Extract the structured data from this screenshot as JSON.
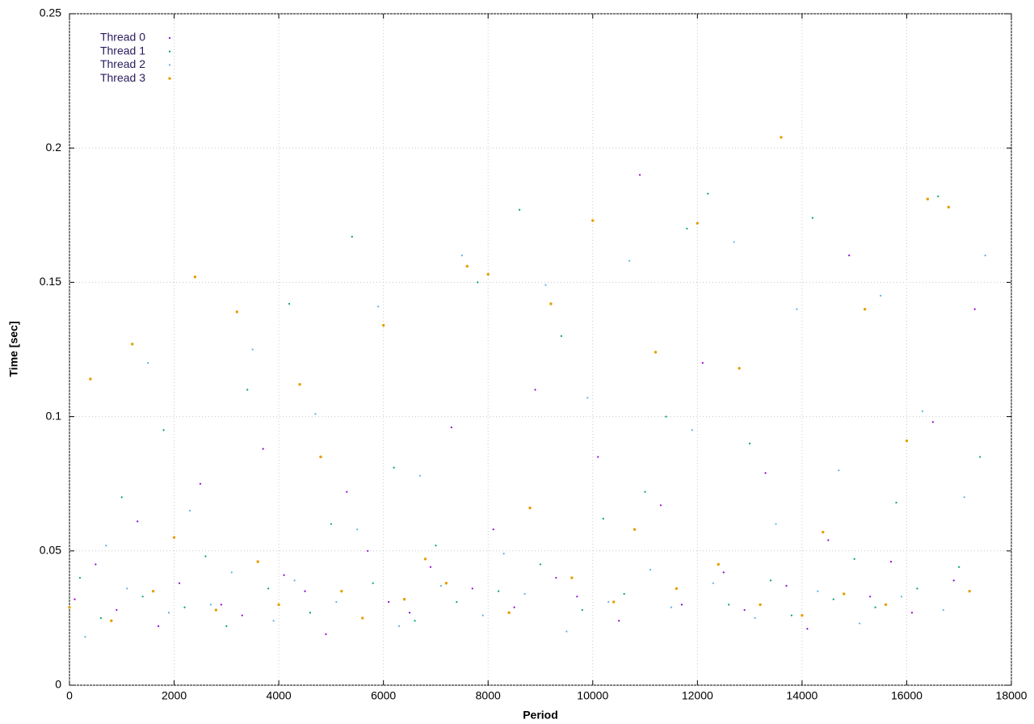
{
  "chart_data": {
    "type": "scatter",
    "xlabel": "Period",
    "ylabel": "Time [sec]",
    "xlim": [
      0,
      18000
    ],
    "xticks": [
      0,
      2000,
      4000,
      6000,
      8000,
      10000,
      12000,
      14000,
      16000,
      18000
    ],
    "ylim": [
      0,
      0.25
    ],
    "yticks": [
      0,
      0.05,
      0.1,
      0.15,
      0.2,
      0.25
    ],
    "grid": true,
    "legend": "upper left",
    "series": [
      {
        "name": "Thread 0",
        "color": "#9400d3",
        "x": [
          100,
          500,
          900,
          1300,
          1700,
          2100,
          2500,
          2900,
          3300,
          3700,
          4100,
          4500,
          4900,
          5300,
          5700,
          6100,
          6500,
          6900,
          7300,
          7700,
          8100,
          8500,
          8900,
          9300,
          9700,
          10100,
          10500,
          10900,
          11300,
          11700,
          12100,
          12500,
          12900,
          13300,
          13700,
          14100,
          14500,
          14900,
          15300,
          15700,
          16100,
          16500,
          16900,
          17300
        ],
        "values": [
          0.032,
          0.045,
          0.028,
          0.061,
          0.022,
          0.038,
          0.075,
          0.03,
          0.026,
          0.088,
          0.041,
          0.035,
          0.019,
          0.072,
          0.05,
          0.031,
          0.027,
          0.044,
          0.096,
          0.036,
          0.058,
          0.029,
          0.11,
          0.04,
          0.033,
          0.085,
          0.024,
          0.19,
          0.067,
          0.03,
          0.12,
          0.042,
          0.028,
          0.079,
          0.037,
          0.021,
          0.054,
          0.16,
          0.033,
          0.046,
          0.027,
          0.098,
          0.039,
          0.14
        ]
      },
      {
        "name": "Thread 1",
        "color": "#009e73",
        "x": [
          200,
          600,
          1000,
          1400,
          1800,
          2200,
          2600,
          3000,
          3400,
          3800,
          4200,
          4600,
          5000,
          5400,
          5800,
          6200,
          6600,
          7000,
          7400,
          7800,
          8200,
          8600,
          9000,
          9400,
          9800,
          10200,
          10600,
          11000,
          11400,
          11800,
          12200,
          12600,
          13000,
          13400,
          13800,
          14200,
          14600,
          15000,
          15400,
          15800,
          16200,
          16600,
          17000,
          17400
        ],
        "values": [
          0.04,
          0.025,
          0.07,
          0.033,
          0.095,
          0.029,
          0.048,
          0.022,
          0.11,
          0.036,
          0.142,
          0.027,
          0.06,
          0.167,
          0.038,
          0.081,
          0.024,
          0.052,
          0.031,
          0.15,
          0.035,
          0.177,
          0.045,
          0.13,
          0.028,
          0.062,
          0.034,
          0.072,
          0.1,
          0.17,
          0.183,
          0.03,
          0.09,
          0.039,
          0.026,
          0.174,
          0.032,
          0.047,
          0.029,
          0.068,
          0.036,
          0.182,
          0.044,
          0.085
        ]
      },
      {
        "name": "Thread 2",
        "color": "#56b4e9",
        "x": [
          300,
          700,
          1100,
          1500,
          1900,
          2300,
          2700,
          3100,
          3500,
          3900,
          4300,
          4700,
          5100,
          5500,
          5900,
          6300,
          6700,
          7100,
          7500,
          7900,
          8300,
          8700,
          9100,
          9500,
          9900,
          10300,
          10700,
          11100,
          11500,
          11900,
          12300,
          12700,
          13100,
          13500,
          13900,
          14300,
          14700,
          15100,
          15500,
          15900,
          16300,
          16700,
          17100,
          17500
        ],
        "values": [
          0.018,
          0.052,
          0.036,
          0.12,
          0.027,
          0.065,
          0.03,
          0.042,
          0.125,
          0.024,
          0.039,
          0.101,
          0.031,
          0.058,
          0.141,
          0.022,
          0.078,
          0.037,
          0.16,
          0.026,
          0.049,
          0.034,
          0.149,
          0.02,
          0.107,
          0.031,
          0.158,
          0.043,
          0.029,
          0.095,
          0.038,
          0.165,
          0.025,
          0.06,
          0.14,
          0.035,
          0.08,
          0.023,
          0.145,
          0.033,
          0.102,
          0.028,
          0.07,
          0.16
        ]
      },
      {
        "name": "Thread 3",
        "color": "#e69f00",
        "x": [
          0,
          400,
          800,
          1200,
          1600,
          2000,
          2400,
          2800,
          3200,
          3600,
          4000,
          4400,
          4800,
          5200,
          5600,
          6000,
          6400,
          6800,
          7200,
          7600,
          8000,
          8400,
          8800,
          9200,
          9600,
          10000,
          10400,
          10800,
          11200,
          11600,
          12000,
          12400,
          12800,
          13200,
          13600,
          14000,
          14400,
          14800,
          15200,
          15600,
          16000,
          16400,
          16800,
          17200
        ],
        "values": [
          0.029,
          0.114,
          0.024,
          0.127,
          0.035,
          0.055,
          0.152,
          0.028,
          0.139,
          0.046,
          0.03,
          0.112,
          0.085,
          0.035,
          0.025,
          0.134,
          0.032,
          0.047,
          0.038,
          0.156,
          0.153,
          0.027,
          0.066,
          0.142,
          0.04,
          0.173,
          0.031,
          0.058,
          0.124,
          0.036,
          0.172,
          0.045,
          0.118,
          0.03,
          0.204,
          0.026,
          0.057,
          0.034,
          0.14,
          0.03,
          0.091,
          0.181,
          0.178,
          0.035
        ]
      }
    ]
  }
}
